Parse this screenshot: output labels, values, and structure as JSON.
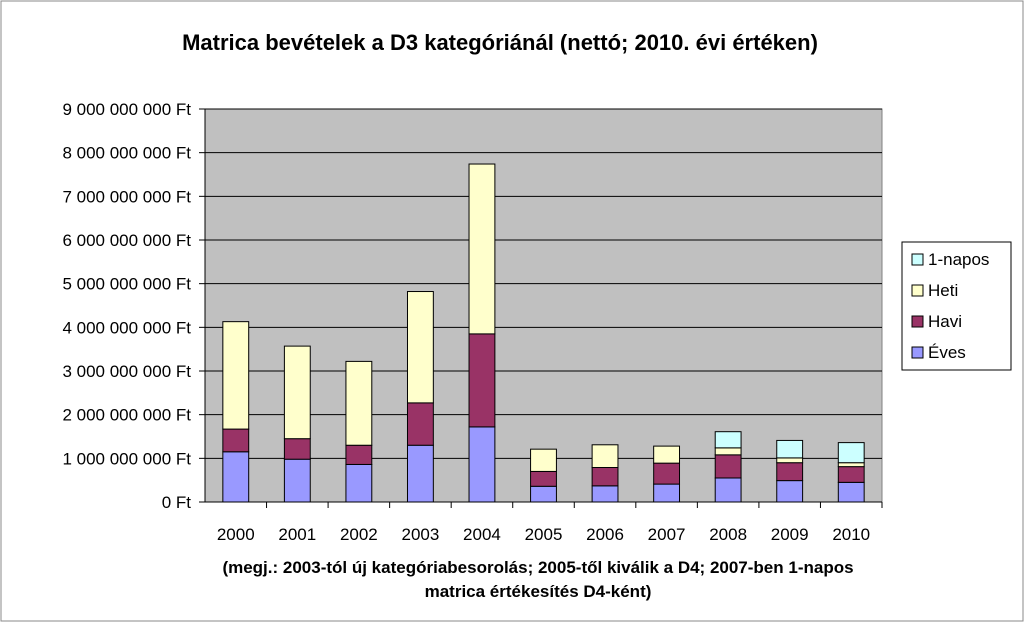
{
  "chart_data": {
    "type": "bar",
    "stacked": true,
    "title": "Matrica bevételek a D3 kategóriánál (nettó; 2010. évi értéken)",
    "xlabel": "(megj.: 2003-tól új kategóriabesorolás; 2005-től kiválik a D4; 2007-ben 1-napos matrica értékesítés D4-ként)",
    "xlabel_lines": [
      "(megj.: 2003-tól új kategóriabesorolás; 2005-től kiválik a D4; 2007-ben 1-napos",
      "matrica értékesítés D4-ként)"
    ],
    "ylabel": "",
    "ylim": [
      0,
      9000000000
    ],
    "yticks": [
      0,
      1000000000,
      2000000000,
      3000000000,
      4000000000,
      5000000000,
      6000000000,
      7000000000,
      8000000000,
      9000000000
    ],
    "ytick_labels": [
      "0 Ft",
      "1 000 000 000 Ft",
      "2 000 000 000 Ft",
      "3 000 000 000 Ft",
      "4 000 000 000 Ft",
      "5 000 000 000 Ft",
      "6 000 000 000 Ft",
      "7 000 000 000 Ft",
      "8 000 000 000 Ft",
      "9 000 000 000 Ft"
    ],
    "grid": true,
    "legend_position": "right",
    "categories": [
      "2000",
      "2001",
      "2002",
      "2003",
      "2004",
      "2005",
      "2006",
      "2007",
      "2008",
      "2009",
      "2010"
    ],
    "series": [
      {
        "name": "Éves",
        "color": "#9999ff",
        "values": [
          1150000000,
          980000000,
          860000000,
          1300000000,
          1720000000,
          360000000,
          370000000,
          410000000,
          550000000,
          490000000,
          450000000
        ]
      },
      {
        "name": "Havi",
        "color": "#993366",
        "values": [
          520000000,
          470000000,
          440000000,
          970000000,
          2130000000,
          340000000,
          420000000,
          480000000,
          530000000,
          410000000,
          360000000
        ]
      },
      {
        "name": "Heti",
        "color": "#ffffcc",
        "values": [
          2460000000,
          2120000000,
          1920000000,
          2550000000,
          3890000000,
          510000000,
          520000000,
          390000000,
          160000000,
          110000000,
          90000000
        ]
      },
      {
        "name": "1-napos",
        "color": "#ccffff",
        "values": [
          0,
          0,
          0,
          0,
          0,
          0,
          0,
          0,
          370000000,
          400000000,
          460000000
        ]
      }
    ],
    "legend_order": [
      "1-napos",
      "Heti",
      "Havi",
      "Éves"
    ],
    "plot_background": "#c0c0c0",
    "bar_edge_color": "#000000"
  }
}
